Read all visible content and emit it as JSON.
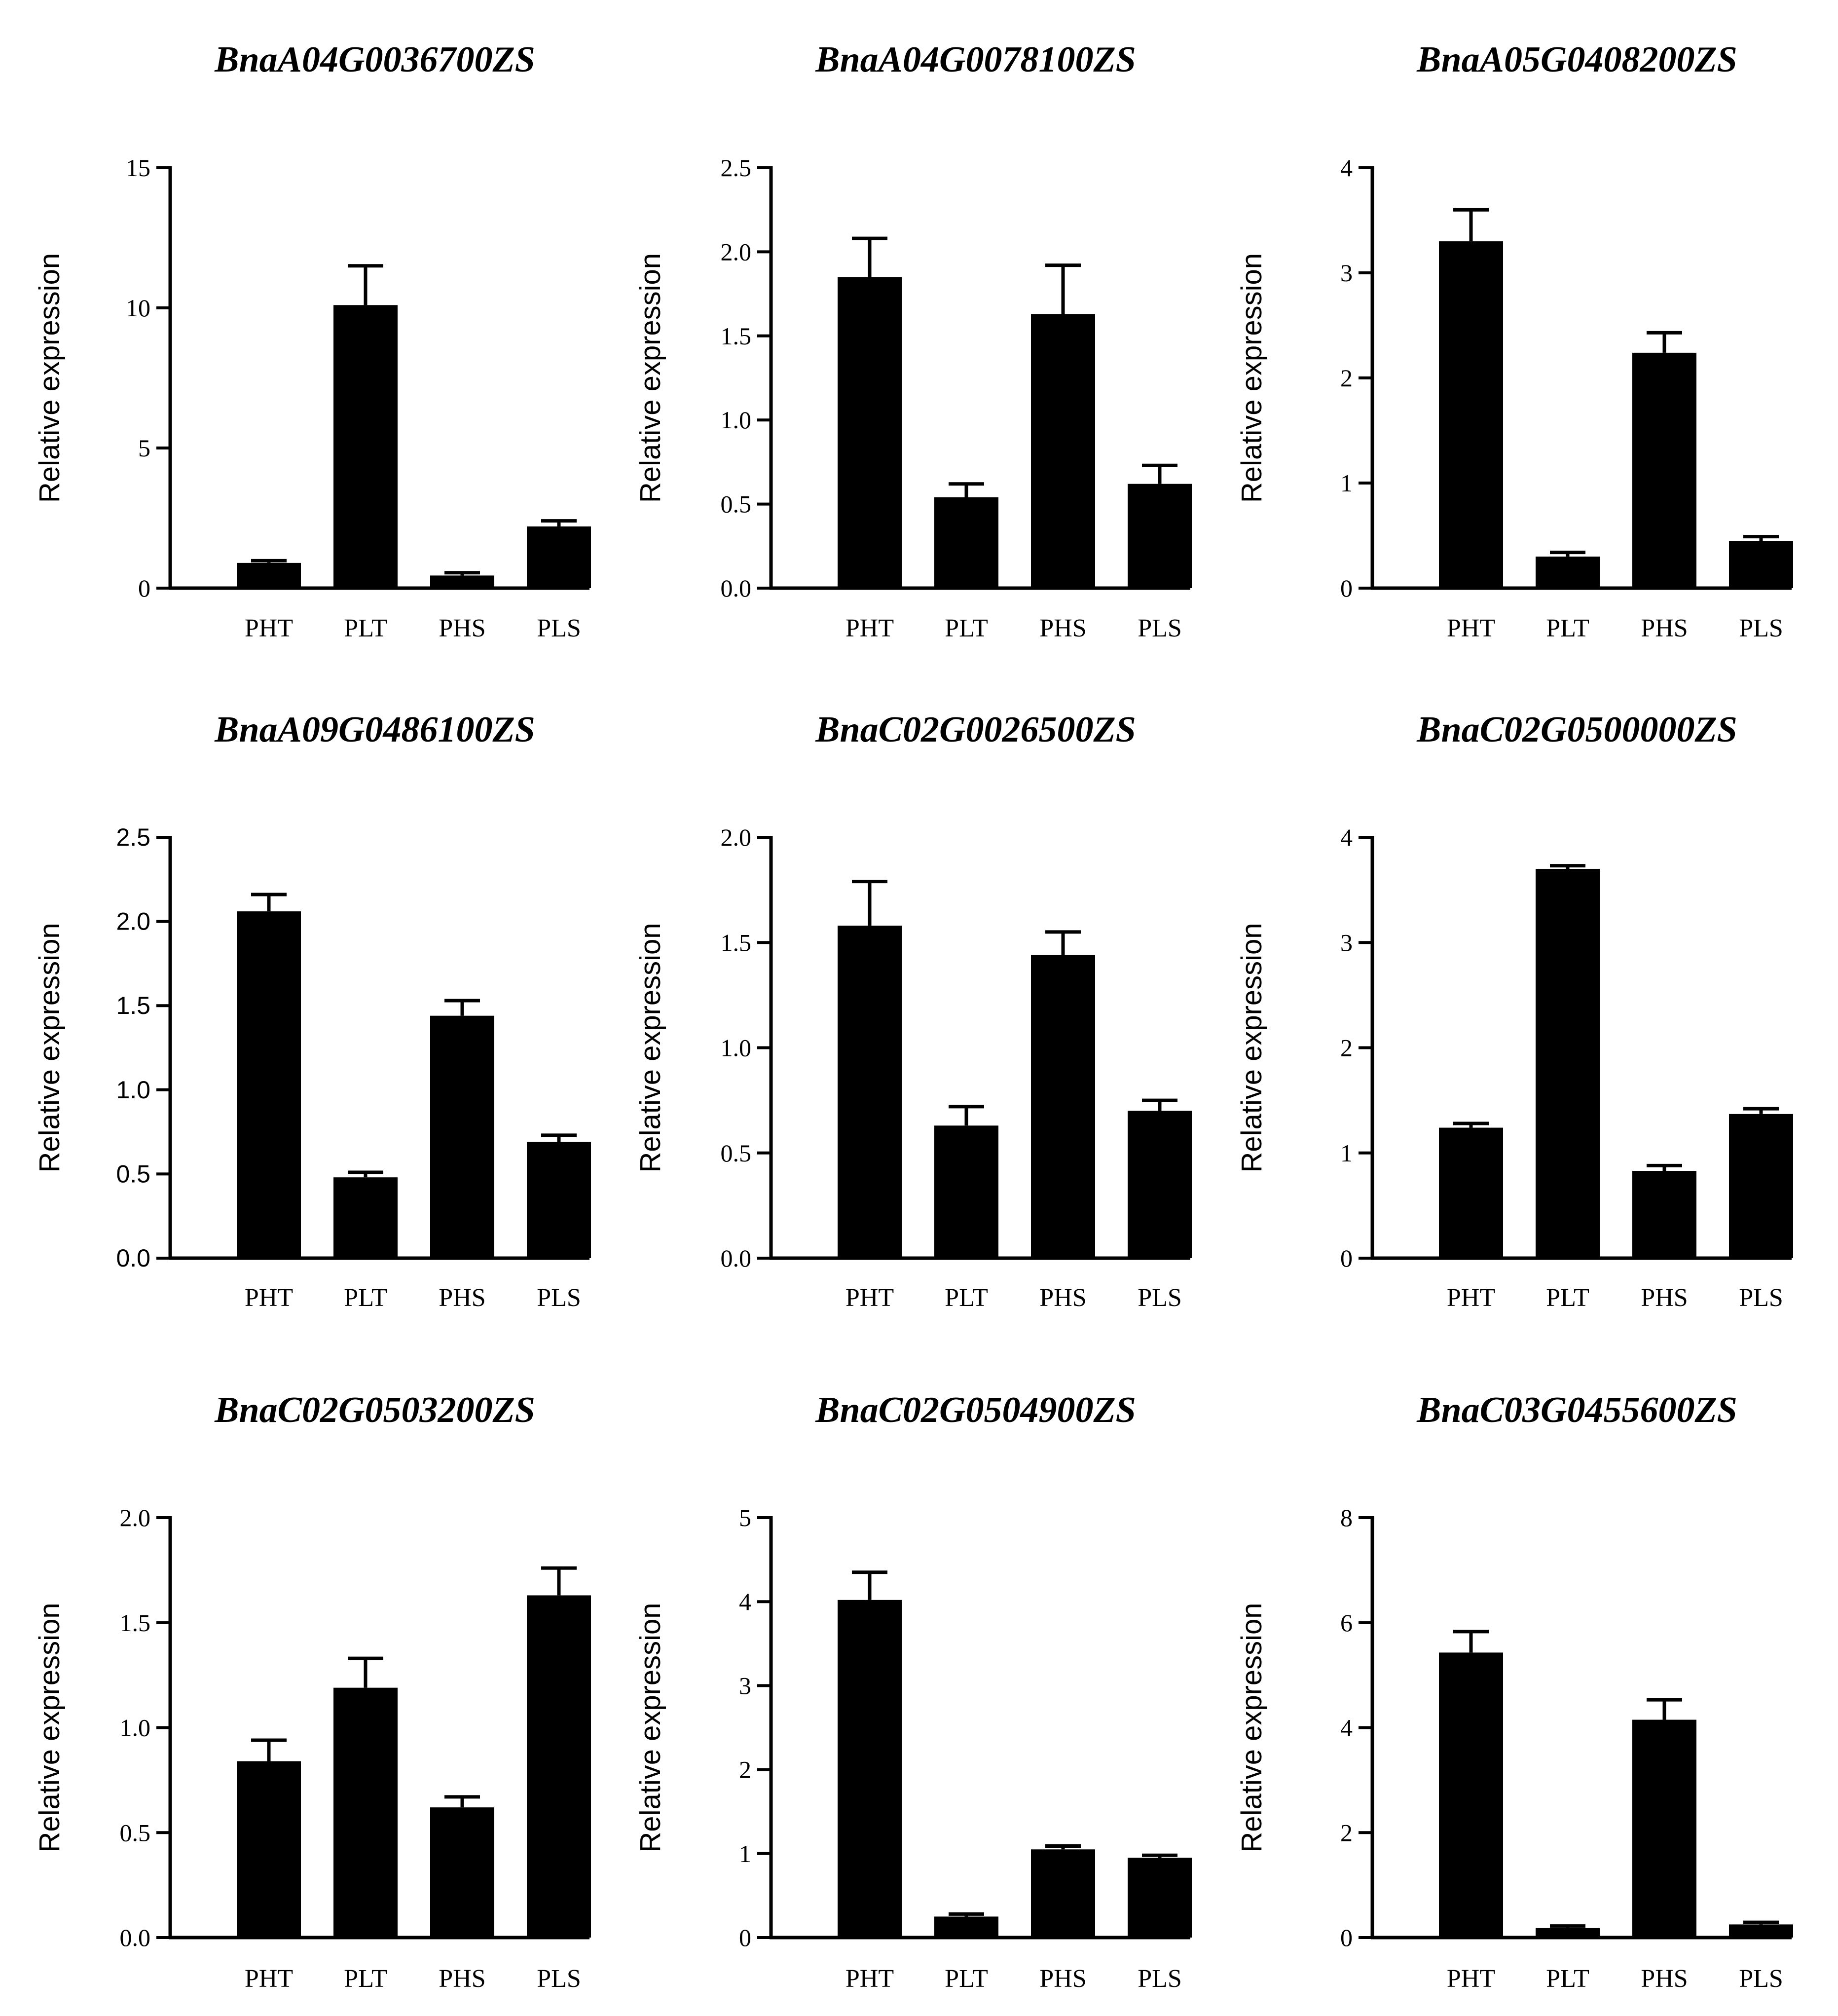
{
  "figure": {
    "background": "#ffffff",
    "bar_color": "#000000"
  },
  "chart_data": [
    {
      "type": "bar",
      "title": "BnaA04G0036700ZS",
      "ylabel": "Relative expression",
      "xlabel": "",
      "categories": [
        "PHT",
        "PLT",
        "PHS",
        "PLS"
      ],
      "values": [
        0.9,
        10.1,
        0.45,
        2.2
      ],
      "errors": [
        0.08,
        1.4,
        0.1,
        0.2
      ],
      "ylim": [
        0,
        15
      ],
      "yticks": [
        "0",
        "5",
        "10",
        "15"
      ]
    },
    {
      "type": "bar",
      "title": "BnaA04G0078100ZS",
      "ylabel": "Relative expression",
      "xlabel": "",
      "categories": [
        "PHT",
        "PLT",
        "PHS",
        "PLS"
      ],
      "values": [
        1.85,
        0.54,
        1.63,
        0.62
      ],
      "errors": [
        0.23,
        0.08,
        0.29,
        0.11
      ],
      "ylim": [
        0,
        2.5
      ],
      "yticks": [
        "0.0",
        "0.5",
        "1.0",
        "1.5",
        "2.0",
        "2.5"
      ]
    },
    {
      "type": "bar",
      "title": "BnaA05G0408200ZS",
      "ylabel": "Relative expression",
      "xlabel": "",
      "categories": [
        "PHT",
        "PLT",
        "PHS",
        "PLS"
      ],
      "values": [
        3.3,
        0.3,
        2.24,
        0.45
      ],
      "errors": [
        0.3,
        0.04,
        0.19,
        0.04
      ],
      "ylim": [
        0,
        4
      ],
      "yticks": [
        "0",
        "1",
        "2",
        "3",
        "4"
      ]
    },
    {
      "type": "bar",
      "title": "BnaA09G0486100ZS",
      "ylabel": "Relative expression",
      "xlabel": "",
      "categories": [
        "PHT",
        "PLT",
        "PHS",
        "PLS"
      ],
      "values": [
        2.06,
        0.48,
        1.44,
        0.69
      ],
      "errors": [
        0.1,
        0.03,
        0.09,
        0.04
      ],
      "ylim": [
        0,
        2.5
      ],
      "yticks": [
        "0.0",
        "0.5",
        "1.0",
        "1.5",
        "2.0",
        "2.5"
      ]
    },
    {
      "type": "bar",
      "title": "BnaC02G0026500ZS",
      "ylabel": "Relative expression",
      "xlabel": "",
      "categories": [
        "PHT",
        "PLT",
        "PHS",
        "PLS"
      ],
      "values": [
        1.58,
        0.63,
        1.44,
        0.7
      ],
      "errors": [
        0.21,
        0.09,
        0.11,
        0.05
      ],
      "ylim": [
        0,
        2.0
      ],
      "yticks": [
        "0.0",
        "0.5",
        "1.0",
        "1.5",
        "2.0"
      ]
    },
    {
      "type": "bar",
      "title": "BnaC02G0500000ZS",
      "ylabel": "Relative expression",
      "xlabel": "",
      "categories": [
        "PHT",
        "PLT",
        "PHS",
        "PLS"
      ],
      "values": [
        1.24,
        3.7,
        0.83,
        1.37
      ],
      "errors": [
        0.04,
        0.03,
        0.05,
        0.05
      ],
      "ylim": [
        0,
        4
      ],
      "yticks": [
        "0",
        "1",
        "2",
        "3",
        "4"
      ]
    },
    {
      "type": "bar",
      "title": "BnaC02G0503200ZS",
      "ylabel": "Relative expression",
      "xlabel": "",
      "categories": [
        "PHT",
        "PLT",
        "PHS",
        "PLS"
      ],
      "values": [
        0.84,
        1.19,
        0.62,
        1.63
      ],
      "errors": [
        0.1,
        0.14,
        0.05,
        0.13
      ],
      "ylim": [
        0,
        2.0
      ],
      "yticks": [
        "0.0",
        "0.5",
        "1.0",
        "1.5",
        "2.0"
      ]
    },
    {
      "type": "bar",
      "title": "BnaC02G0504900ZS",
      "ylabel": "Relative expression",
      "xlabel": "",
      "categories": [
        "PHT",
        "PLT",
        "PHS",
        "PLS"
      ],
      "values": [
        4.02,
        0.25,
        1.05,
        0.95
      ],
      "errors": [
        0.33,
        0.03,
        0.04,
        0.03
      ],
      "ylim": [
        0,
        5
      ],
      "yticks": [
        "0",
        "1",
        "2",
        "3",
        "4",
        "5"
      ]
    },
    {
      "type": "bar",
      "title": "BnaC03G0455600ZS",
      "ylabel": "Relative expression",
      "xlabel": "",
      "categories": [
        "PHT",
        "PLT",
        "PHS",
        "PLS"
      ],
      "values": [
        5.43,
        0.18,
        4.15,
        0.25
      ],
      "errors": [
        0.4,
        0.04,
        0.38,
        0.04
      ],
      "ylim": [
        0,
        8
      ],
      "yticks": [
        "0",
        "2",
        "4",
        "6",
        "8"
      ]
    }
  ]
}
